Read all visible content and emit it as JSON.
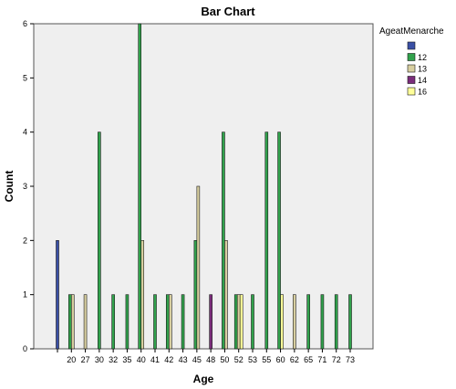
{
  "chart_data": {
    "type": "bar",
    "title": "Bar Chart",
    "xlabel": "Age",
    "ylabel": "Count",
    "ylim": [
      0,
      6
    ],
    "yticks": [
      0,
      1,
      2,
      3,
      4,
      5,
      6
    ],
    "grid": false,
    "legend_position": "top-right",
    "legend_title": "AgeatMenarche",
    "categories": [
      "",
      "20",
      "27",
      "30",
      "32",
      "35",
      "40",
      "41",
      "42",
      "43",
      "45",
      "48",
      "50",
      "52",
      "53",
      "55",
      "60",
      "62",
      "65",
      "71",
      "72",
      "73"
    ],
    "series": [
      {
        "name": "",
        "color": "#3a50a5",
        "values": [
          2,
          0,
          0,
          0,
          0,
          0,
          0,
          0,
          0,
          0,
          0,
          0,
          0,
          0,
          0,
          0,
          0,
          0,
          0,
          0,
          0,
          0
        ]
      },
      {
        "name": "12",
        "color": "#31a24c",
        "values": [
          0,
          1,
          0,
          4,
          1,
          1,
          6,
          1,
          1,
          1,
          2,
          0,
          4,
          1,
          1,
          4,
          4,
          0,
          1,
          1,
          1,
          1
        ]
      },
      {
        "name": "13",
        "color": "#d8cfa0",
        "values": [
          0,
          1,
          1,
          0,
          0,
          0,
          2,
          0,
          1,
          0,
          3,
          0,
          2,
          1,
          0,
          0,
          0,
          1,
          0,
          0,
          0,
          0
        ]
      },
      {
        "name": "14",
        "color": "#7a2c7a",
        "values": [
          0,
          0,
          0,
          0,
          0,
          0,
          0,
          0,
          0,
          0,
          0,
          1,
          0,
          0,
          0,
          0,
          0,
          0,
          0,
          0,
          0,
          0
        ]
      },
      {
        "name": "16",
        "color": "#ffff99",
        "values": [
          0,
          0,
          0,
          0,
          0,
          0,
          0,
          0,
          0,
          0,
          0,
          0,
          0,
          1,
          0,
          0,
          1,
          0,
          0,
          0,
          0,
          0
        ]
      }
    ]
  }
}
